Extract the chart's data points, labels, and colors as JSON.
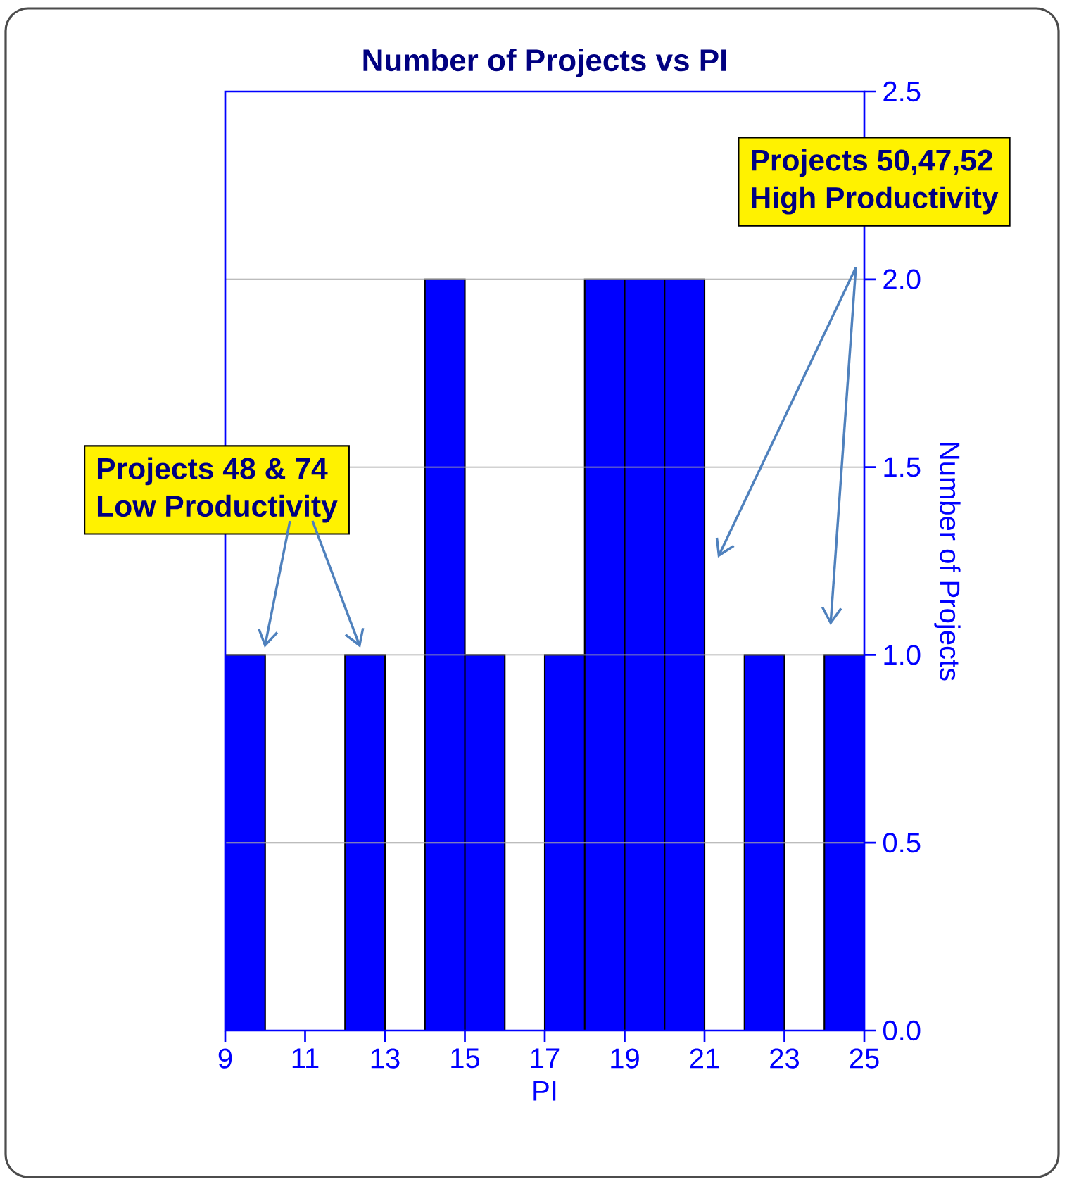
{
  "chart_data": {
    "type": "histogram",
    "title": "Number of Projects vs PI",
    "xlabel": "PI",
    "ylabel": "Number of Projects",
    "bins": [
      9,
      10,
      11,
      12,
      13,
      14,
      15,
      16,
      17,
      18,
      19,
      20,
      21,
      22,
      23,
      24,
      25
    ],
    "values": [
      1,
      0,
      0,
      1,
      0,
      2,
      1,
      0,
      1,
      2,
      2,
      2,
      0,
      1,
      0,
      1
    ],
    "color": "#0000ff",
    "xlim": [
      9,
      25
    ],
    "xticks": [
      9,
      11,
      13,
      15,
      17,
      19,
      21,
      23,
      25
    ],
    "ylim": [
      0,
      2.5
    ],
    "yticks": [
      {
        "value": 0,
        "label": "0.0"
      },
      {
        "value": 0.5,
        "label": "0.5"
      },
      {
        "value": 1,
        "label": "1.0"
      },
      {
        "value": 1.5,
        "label": "1.5"
      },
      {
        "value": 2,
        "label": "2.0"
      },
      {
        "value": 2.5,
        "label": "2.5"
      }
    ],
    "grid": "y",
    "annotations": [
      "Projects 48 & 74",
      "Low Productivity",
      "Projects 50,47,52",
      "High Productivity"
    ]
  }
}
